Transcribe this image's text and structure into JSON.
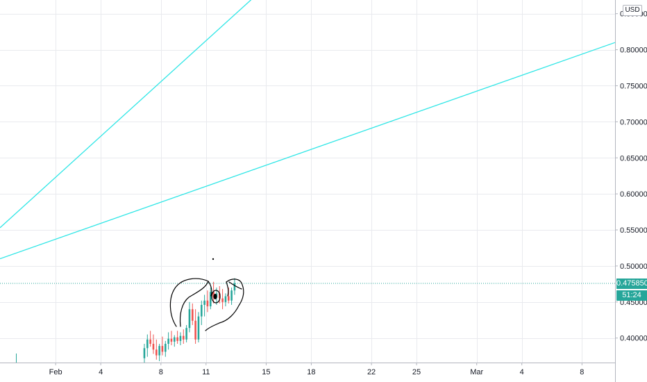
{
  "chart_data": {
    "type": "candlestick",
    "currency": "USD",
    "y_ticks": [
      "0.400000",
      "0.450000",
      "0.500000",
      "0.550000",
      "0.600000",
      "0.650000",
      "0.700000",
      "0.750000",
      "0.800000",
      "0.850000"
    ],
    "y_tick_values": [
      0.4,
      0.45,
      0.5,
      0.55,
      0.6,
      0.65,
      0.7,
      0.75,
      0.8,
      0.85
    ],
    "ylim": [
      0.366,
      0.868
    ],
    "x_ticks": [
      "Feb",
      "4",
      "8",
      "11",
      "15",
      "18",
      "22",
      "25",
      "Mar",
      "4",
      "8"
    ],
    "x_tick_days": [
      1,
      4,
      8,
      11,
      15,
      18,
      22,
      25,
      29,
      32,
      36
    ],
    "xlim_days": [
      -2.7,
      38.2
    ],
    "last_price": "0.475850",
    "last_price_value": 0.47585,
    "countdown": "51:24",
    "trend_lines": [
      {
        "color": "#2ee6e6",
        "from": {
          "day": -2.7,
          "price": 0.553
        },
        "to": {
          "day": 14.3,
          "price": 0.875
        }
      },
      {
        "color": "#2ee6e6",
        "from": {
          "day": -2.7,
          "price": 0.51
        },
        "to": {
          "day": 38.2,
          "price": 0.81
        }
      }
    ],
    "candles": [
      {
        "day": 6.9,
        "o": 0.372,
        "h": 0.392,
        "l": 0.366,
        "c": 0.386
      },
      {
        "day": 7.1,
        "o": 0.386,
        "h": 0.405,
        "l": 0.374,
        "c": 0.398
      },
      {
        "day": 7.3,
        "o": 0.398,
        "h": 0.41,
        "l": 0.388,
        "c": 0.392
      },
      {
        "day": 7.5,
        "o": 0.392,
        "h": 0.405,
        "l": 0.378,
        "c": 0.384
      },
      {
        "day": 7.7,
        "o": 0.384,
        "h": 0.398,
        "l": 0.37,
        "c": 0.376
      },
      {
        "day": 7.9,
        "o": 0.376,
        "h": 0.392,
        "l": 0.368,
        "c": 0.389
      },
      {
        "day": 8.1,
        "o": 0.389,
        "h": 0.402,
        "l": 0.376,
        "c": 0.381
      },
      {
        "day": 8.3,
        "o": 0.381,
        "h": 0.396,
        "l": 0.374,
        "c": 0.392
      },
      {
        "day": 8.5,
        "o": 0.392,
        "h": 0.408,
        "l": 0.384,
        "c": 0.399
      },
      {
        "day": 8.7,
        "o": 0.399,
        "h": 0.41,
        "l": 0.39,
        "c": 0.395
      },
      {
        "day": 8.9,
        "o": 0.395,
        "h": 0.404,
        "l": 0.388,
        "c": 0.401
      },
      {
        "day": 9.1,
        "o": 0.401,
        "h": 0.41,
        "l": 0.392,
        "c": 0.396
      },
      {
        "day": 9.3,
        "o": 0.396,
        "h": 0.408,
        "l": 0.39,
        "c": 0.403
      },
      {
        "day": 9.5,
        "o": 0.403,
        "h": 0.412,
        "l": 0.392,
        "c": 0.398
      },
      {
        "day": 9.7,
        "o": 0.398,
        "h": 0.418,
        "l": 0.394,
        "c": 0.414
      },
      {
        "day": 9.9,
        "o": 0.414,
        "h": 0.45,
        "l": 0.408,
        "c": 0.44
      },
      {
        "day": 10.1,
        "o": 0.44,
        "h": 0.448,
        "l": 0.418,
        "c": 0.424
      },
      {
        "day": 10.3,
        "o": 0.424,
        "h": 0.44,
        "l": 0.392,
        "c": 0.398
      },
      {
        "day": 10.5,
        "o": 0.398,
        "h": 0.436,
        "l": 0.394,
        "c": 0.43
      },
      {
        "day": 10.7,
        "o": 0.43,
        "h": 0.452,
        "l": 0.418,
        "c": 0.446
      },
      {
        "day": 10.9,
        "o": 0.446,
        "h": 0.46,
        "l": 0.43,
        "c": 0.452
      },
      {
        "day": 11.1,
        "o": 0.452,
        "h": 0.466,
        "l": 0.436,
        "c": 0.444
      },
      {
        "day": 11.3,
        "o": 0.444,
        "h": 0.47,
        "l": 0.44,
        "c": 0.464
      },
      {
        "day": 11.5,
        "o": 0.464,
        "h": 0.478,
        "l": 0.448,
        "c": 0.456
      },
      {
        "day": 11.7,
        "o": 0.456,
        "h": 0.47,
        "l": 0.446,
        "c": 0.462
      },
      {
        "day": 11.9,
        "o": 0.462,
        "h": 0.472,
        "l": 0.448,
        "c": 0.455
      },
      {
        "day": 12.1,
        "o": 0.455,
        "h": 0.468,
        "l": 0.44,
        "c": 0.45
      },
      {
        "day": 12.3,
        "o": 0.45,
        "h": 0.462,
        "l": 0.444,
        "c": 0.458
      },
      {
        "day": 12.5,
        "o": 0.458,
        "h": 0.47,
        "l": 0.448,
        "c": 0.452
      },
      {
        "day": 12.7,
        "o": 0.452,
        "h": 0.47,
        "l": 0.446,
        "c": 0.466
      },
      {
        "day": 12.9,
        "o": 0.466,
        "h": 0.483,
        "l": 0.46,
        "c": 0.476
      }
    ],
    "colors": {
      "up": "#26a69a",
      "down": "#ef5350",
      "grid": "#e9eaee",
      "axis": "#b2b5be",
      "trend": "#2ee6e6",
      "last_price_line": "#26a69a",
      "drawing": "#000000"
    }
  }
}
